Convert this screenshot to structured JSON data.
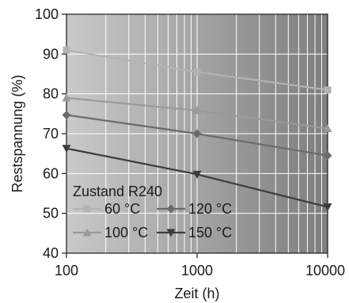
{
  "chart_data": {
    "type": "line",
    "xlabel": "Zeit (h)",
    "ylabel": "Restspannung (%)",
    "x_scale": "log",
    "xlim": [
      100,
      10000
    ],
    "ylim": [
      40,
      100
    ],
    "x_ticks": [
      100,
      1000,
      10000
    ],
    "x_tick_labels": [
      "100",
      "1000",
      "10000"
    ],
    "y_ticks": [
      40,
      50,
      60,
      70,
      80,
      90,
      100
    ],
    "y_tick_labels": [
      "40",
      "50",
      "60",
      "70",
      "80",
      "90",
      "100"
    ],
    "grid": true,
    "background": "grey-gradient",
    "legend": {
      "title": "Zustand R240",
      "placement": "bottom-left"
    },
    "series": [
      {
        "name": "60 °C",
        "marker": "square",
        "color": "#b3b3b3",
        "x": [
          100,
          1000,
          10000
        ],
        "y": [
          91,
          85.5,
          81
        ]
      },
      {
        "name": "100 °C",
        "marker": "triangle-up",
        "color": "#9a9a9a",
        "x": [
          100,
          1000,
          10000
        ],
        "y": [
          79,
          75.8,
          71.3
        ]
      },
      {
        "name": "120 °C",
        "marker": "diamond",
        "color": "#6b6b6b",
        "x": [
          100,
          1000,
          10000
        ],
        "y": [
          74.7,
          70,
          64.5
        ]
      },
      {
        "name": "150 °C",
        "marker": "triangle-down",
        "color": "#3c3c3c",
        "x": [
          100,
          1000,
          10000
        ],
        "y": [
          66.3,
          59.8,
          51.6
        ]
      }
    ]
  }
}
